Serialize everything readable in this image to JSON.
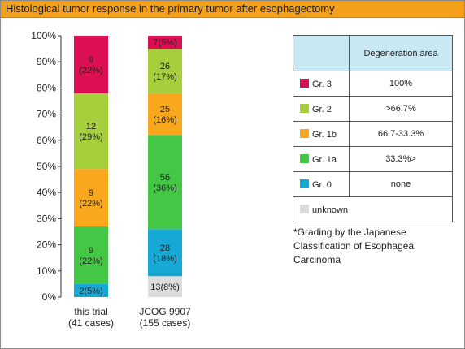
{
  "title": "Histological tumor response in the primary tumor after esophagectomy",
  "chart_data": {
    "type": "bar",
    "stacked": true,
    "categories": [
      "this trial\n(41 cases)",
      "JCOG 9907\n(155 cases)"
    ],
    "y_ticks": [
      "0%",
      "10%",
      "20%",
      "30%",
      "40%",
      "50%",
      "60%",
      "70%",
      "80%",
      "90%",
      "100%"
    ],
    "ylim": [
      0,
      100
    ],
    "grid": false,
    "series": [
      {
        "name": "unknown",
        "color": "#dcdcdc",
        "values": [
          0,
          8
        ],
        "labels": [
          "",
          "13(8%)"
        ]
      },
      {
        "name": "Gr. 0",
        "color": "#17a9d6",
        "values": [
          5,
          18
        ],
        "labels": [
          "2(5%)",
          "28\n(18%)"
        ]
      },
      {
        "name": "Gr. 1a",
        "color": "#44c744",
        "values": [
          22,
          36
        ],
        "labels": [
          "9\n(22%)",
          "56\n(36%)"
        ]
      },
      {
        "name": "Gr. 1b",
        "color": "#f9a71c",
        "values": [
          22,
          16
        ],
        "labels": [
          "9\n(22%)",
          "25\n(16%)"
        ]
      },
      {
        "name": "Gr. 2",
        "color": "#a6cf3c",
        "values": [
          29,
          17
        ],
        "labels": [
          "12\n(29%)",
          "26\n(17%)"
        ]
      },
      {
        "name": "Gr. 3",
        "color": "#dc0f52",
        "values": [
          22,
          5
        ],
        "labels": [
          "9\n(22%)",
          "7(5%)"
        ]
      }
    ]
  },
  "legend": {
    "header": "Degeneration area",
    "rows": [
      {
        "grade": "Gr. 3",
        "color": "#dc0f52",
        "area": "100%"
      },
      {
        "grade": "Gr. 2",
        "color": "#a6cf3c",
        "area": ">66.7%"
      },
      {
        "grade": "Gr. 1b",
        "color": "#f9a71c",
        "area": "66.7-33.3%"
      },
      {
        "grade": "Gr. 1a",
        "color": "#44c744",
        "area": "33.3%>"
      },
      {
        "grade": "Gr. 0",
        "color": "#17a9d6",
        "area": "none"
      },
      {
        "grade": "unknown",
        "color": "#dcdcdc",
        "area": ""
      }
    ]
  },
  "note": "*Grading by the Japanese Classification of Esophageal Carcinoma"
}
